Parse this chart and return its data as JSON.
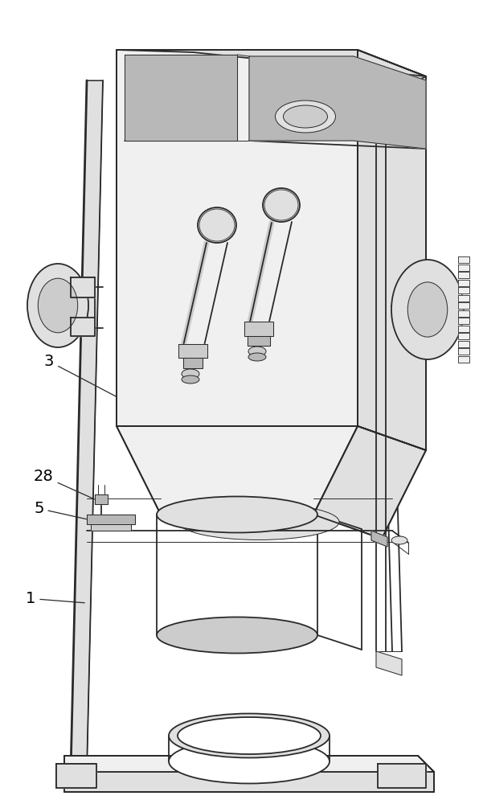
{
  "background_color": "#ffffff",
  "line_color": "#2a2a2a",
  "label_color": "#000000",
  "label_fontsize": 14,
  "lw_main": 1.3,
  "lw_thin": 0.7,
  "lw_thick": 2.0,
  "gray_light": "#f0f0f0",
  "gray_mid": "#e0e0e0",
  "gray_dark": "#cccccc",
  "gray_darker": "#b8b8b8"
}
